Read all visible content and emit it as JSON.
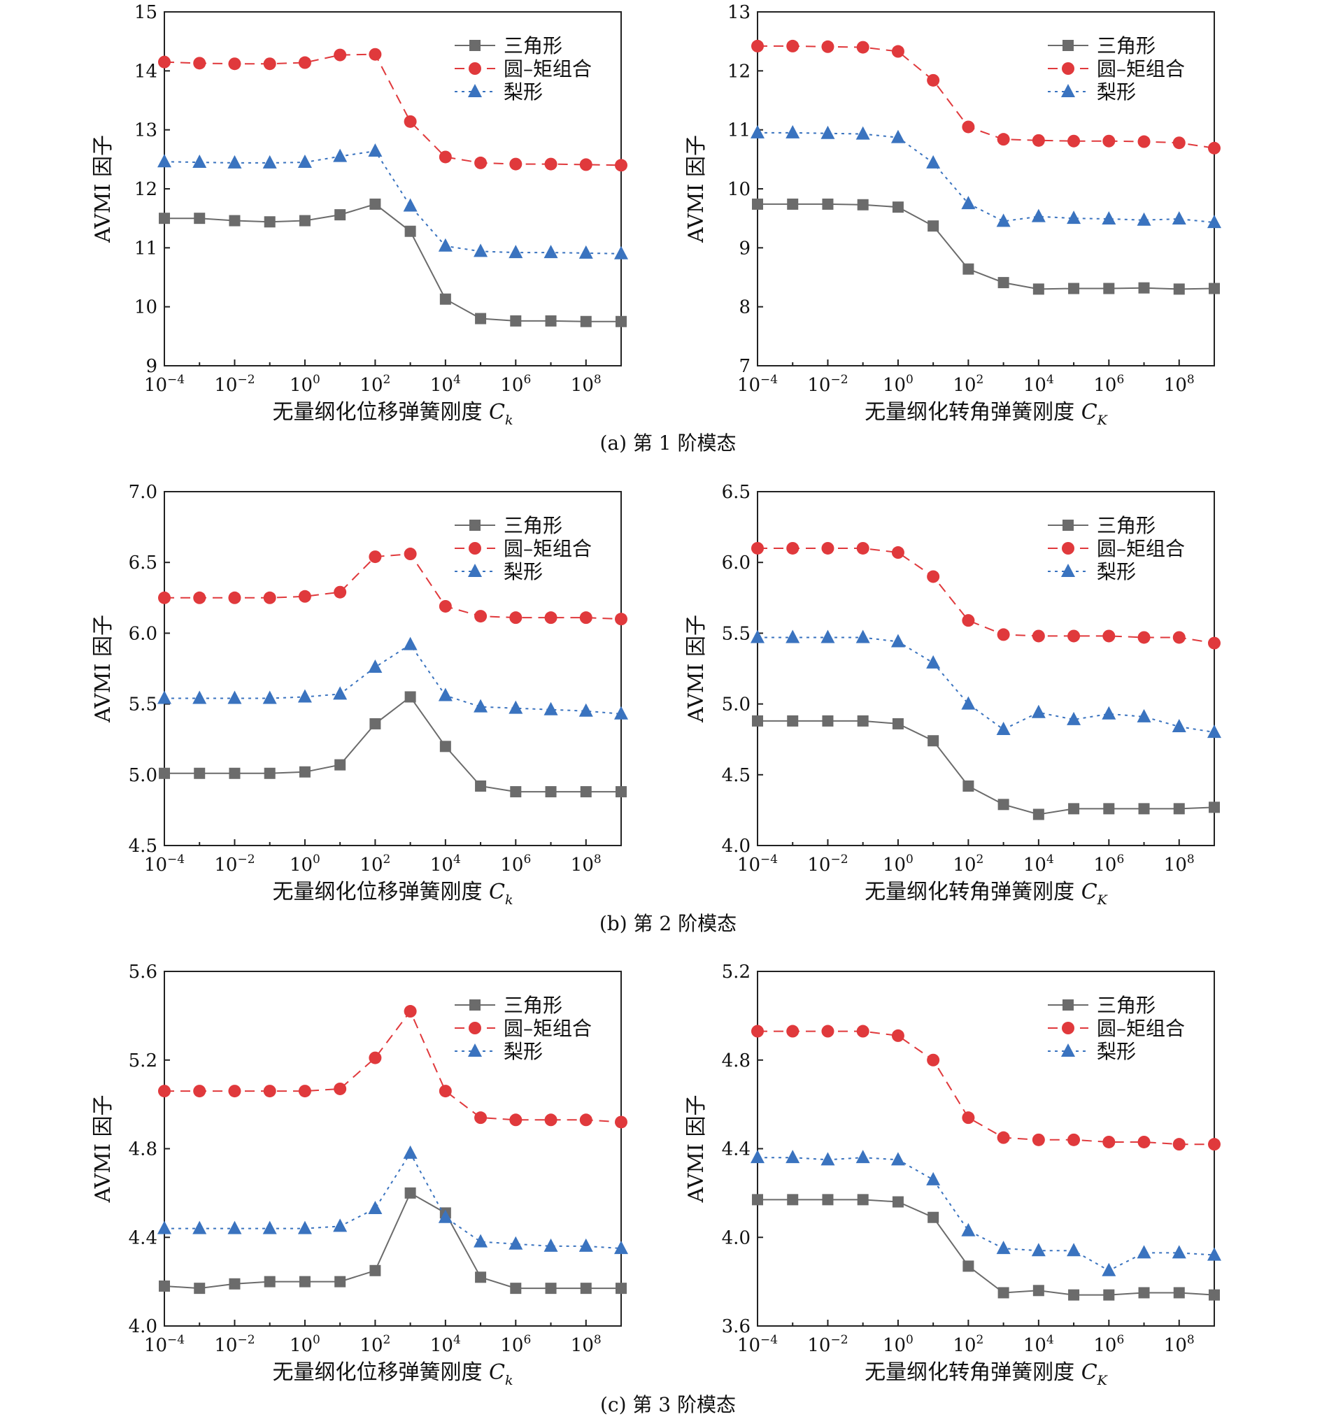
{
  "legend_labels": [
    "三角形",
    "圆–矩组合",
    "梨形"
  ],
  "series_colors": [
    "#6b6b6b",
    "#e0393c",
    "#3a73bf"
  ],
  "captions": [
    "(a) 第 1 阶模态",
    "(b) 第 2 阶模态",
    "(c) 第 3 阶模态"
  ],
  "chart_data": [
    {
      "type": "line",
      "panel": "(a) left",
      "x": [
        "1e-4",
        "1e-3",
        "1e-2",
        "1e-1",
        "1e0",
        "1e1",
        "1e2",
        "1e3",
        "1e4",
        "1e5",
        "1e6",
        "1e7",
        "1e8",
        "1e9"
      ],
      "xtick_labels": [
        "10^-4",
        "10^-2",
        "10^0",
        "10^2",
        "10^4",
        "10^6",
        "10^8"
      ],
      "xscale": "log",
      "xlim": [
        0.0001,
        1000000000.0
      ],
      "xlabel": "无量纲化位移弹簧刚度 C_k",
      "ylabel": "AVMI 因子",
      "ylim": [
        9,
        15
      ],
      "yticks": [
        "9",
        "10",
        "11",
        "12",
        "13",
        "14",
        "15"
      ],
      "series": [
        {
          "name": "三角形",
          "marker": "square",
          "line": "solid",
          "values": [
            11.5,
            11.5,
            11.46,
            11.44,
            11.46,
            11.56,
            11.74,
            11.28,
            10.13,
            9.8,
            9.76,
            9.76,
            9.75,
            9.75
          ]
        },
        {
          "name": "圆–矩组合",
          "marker": "circle",
          "line": "dashed",
          "values": [
            14.15,
            14.13,
            14.12,
            14.12,
            14.14,
            14.27,
            14.28,
            13.14,
            12.54,
            12.44,
            12.42,
            12.42,
            12.41,
            12.4
          ]
        },
        {
          "name": "梨形",
          "marker": "triangle",
          "line": "dotted",
          "values": [
            12.46,
            12.45,
            12.44,
            12.44,
            12.45,
            12.55,
            12.64,
            11.71,
            11.03,
            10.94,
            10.92,
            10.92,
            10.91,
            10.9
          ]
        }
      ]
    },
    {
      "type": "line",
      "panel": "(a) right",
      "x": [
        "1e-4",
        "1e-3",
        "1e-2",
        "1e-1",
        "1e0",
        "1e1",
        "1e2",
        "1e3",
        "1e4",
        "1e5",
        "1e6",
        "1e7",
        "1e8",
        "1e9"
      ],
      "xtick_labels": [
        "10^-4",
        "10^-2",
        "10^0",
        "10^2",
        "10^4",
        "10^6",
        "10^8"
      ],
      "xscale": "log",
      "xlim": [
        0.0001,
        1000000000.0
      ],
      "xlabel": "无量纲化转角弹簧刚度 C_K",
      "ylabel": "AVMI 因子",
      "ylim": [
        7,
        13
      ],
      "yticks": [
        "7",
        "8",
        "9",
        "10",
        "11",
        "12",
        "13"
      ],
      "series": [
        {
          "name": "三角形",
          "marker": "square",
          "line": "solid",
          "values": [
            9.74,
            9.74,
            9.74,
            9.73,
            9.69,
            9.37,
            8.64,
            8.41,
            8.3,
            8.31,
            8.31,
            8.32,
            8.3,
            8.31
          ]
        },
        {
          "name": "圆–矩组合",
          "marker": "circle",
          "line": "dashed",
          "values": [
            12.42,
            12.42,
            12.41,
            12.4,
            12.33,
            11.84,
            11.05,
            10.84,
            10.82,
            10.81,
            10.81,
            10.8,
            10.78,
            10.69
          ]
        },
        {
          "name": "梨形",
          "marker": "triangle",
          "line": "dotted",
          "values": [
            10.95,
            10.95,
            10.94,
            10.93,
            10.87,
            10.44,
            9.75,
            9.45,
            9.53,
            9.5,
            9.49,
            9.47,
            9.49,
            9.43
          ]
        }
      ]
    },
    {
      "type": "line",
      "panel": "(b) left",
      "x": [
        "1e-4",
        "1e-3",
        "1e-2",
        "1e-1",
        "1e0",
        "1e1",
        "1e2",
        "1e3",
        "1e4",
        "1e5",
        "1e6",
        "1e7",
        "1e8",
        "1e9"
      ],
      "xtick_labels": [
        "10^-4",
        "10^-2",
        "10^0",
        "10^2",
        "10^4",
        "10^6",
        "10^8"
      ],
      "xscale": "log",
      "xlim": [
        0.0001,
        1000000000.0
      ],
      "xlabel": "无量纲化位移弹簧刚度 C_k",
      "ylabel": "AVMI 因子",
      "ylim": [
        4.5,
        7.0
      ],
      "yticks": [
        "4.5",
        "5.0",
        "5.5",
        "6.0",
        "6.5",
        "7.0"
      ],
      "series": [
        {
          "name": "三角形",
          "marker": "square",
          "line": "solid",
          "values": [
            5.01,
            5.01,
            5.01,
            5.01,
            5.02,
            5.07,
            5.36,
            5.55,
            5.2,
            4.92,
            4.88,
            4.88,
            4.88,
            4.88
          ]
        },
        {
          "name": "圆–矩组合",
          "marker": "circle",
          "line": "dashed",
          "values": [
            6.25,
            6.25,
            6.25,
            6.25,
            6.26,
            6.29,
            6.54,
            6.56,
            6.19,
            6.12,
            6.11,
            6.11,
            6.11,
            6.1
          ]
        },
        {
          "name": "梨形",
          "marker": "triangle",
          "line": "dotted",
          "values": [
            5.54,
            5.54,
            5.54,
            5.54,
            5.55,
            5.57,
            5.76,
            5.92,
            5.56,
            5.48,
            5.47,
            5.46,
            5.45,
            5.43
          ]
        }
      ]
    },
    {
      "type": "line",
      "panel": "(b) right",
      "x": [
        "1e-4",
        "1e-3",
        "1e-2",
        "1e-1",
        "1e0",
        "1e1",
        "1e2",
        "1e3",
        "1e4",
        "1e5",
        "1e6",
        "1e7",
        "1e8",
        "1e9"
      ],
      "xtick_labels": [
        "10^-4",
        "10^-2",
        "10^0",
        "10^2",
        "10^4",
        "10^6",
        "10^8"
      ],
      "xscale": "log",
      "xlim": [
        0.0001,
        1000000000.0
      ],
      "xlabel": "无量纲化转角弹簧刚度 C_K",
      "ylabel": "AVMI 因子",
      "ylim": [
        4.0,
        6.5
      ],
      "yticks": [
        "4.0",
        "4.5",
        "5.0",
        "5.5",
        "6.0",
        "6.5"
      ],
      "series": [
        {
          "name": "三角形",
          "marker": "square",
          "line": "solid",
          "values": [
            4.88,
            4.88,
            4.88,
            4.88,
            4.86,
            4.74,
            4.42,
            4.29,
            4.22,
            4.26,
            4.26,
            4.26,
            4.26,
            4.27
          ]
        },
        {
          "name": "圆–矩组合",
          "marker": "circle",
          "line": "dashed",
          "values": [
            6.1,
            6.1,
            6.1,
            6.1,
            6.07,
            5.9,
            5.59,
            5.49,
            5.48,
            5.48,
            5.48,
            5.47,
            5.47,
            5.43
          ]
        },
        {
          "name": "梨形",
          "marker": "triangle",
          "line": "dotted",
          "values": [
            5.47,
            5.47,
            5.47,
            5.47,
            5.44,
            5.29,
            5.0,
            4.82,
            4.94,
            4.89,
            4.93,
            4.91,
            4.84,
            4.8
          ]
        }
      ]
    },
    {
      "type": "line",
      "panel": "(c) left",
      "x": [
        "1e-4",
        "1e-3",
        "1e-2",
        "1e-1",
        "1e0",
        "1e1",
        "1e2",
        "1e3",
        "1e4",
        "1e5",
        "1e6",
        "1e7",
        "1e8",
        "1e9"
      ],
      "xtick_labels": [
        "10^-4",
        "10^-2",
        "10^0",
        "10^2",
        "10^4",
        "10^6",
        "10^8"
      ],
      "xscale": "log",
      "xlim": [
        0.0001,
        1000000000.0
      ],
      "xlabel": "无量纲化位移弹簧刚度 C_k",
      "ylabel": "AVMI 因子",
      "ylim": [
        4.0,
        5.6
      ],
      "yticks": [
        "4.0",
        "4.4",
        "4.8",
        "5.2",
        "5.6"
      ],
      "series": [
        {
          "name": "三角形",
          "marker": "square",
          "line": "solid",
          "values": [
            4.18,
            4.17,
            4.19,
            4.2,
            4.2,
            4.2,
            4.25,
            4.6,
            4.51,
            4.22,
            4.17,
            4.17,
            4.17,
            4.17
          ]
        },
        {
          "name": "圆–矩组合",
          "marker": "circle",
          "line": "dashed",
          "values": [
            5.06,
            5.06,
            5.06,
            5.06,
            5.06,
            5.07,
            5.21,
            5.42,
            5.06,
            4.94,
            4.93,
            4.93,
            4.93,
            4.92
          ]
        },
        {
          "name": "梨形",
          "marker": "triangle",
          "line": "dotted",
          "values": [
            4.44,
            4.44,
            4.44,
            4.44,
            4.44,
            4.45,
            4.53,
            4.78,
            4.49,
            4.38,
            4.37,
            4.36,
            4.36,
            4.35
          ]
        }
      ]
    },
    {
      "type": "line",
      "panel": "(c) right",
      "x": [
        "1e-4",
        "1e-3",
        "1e-2",
        "1e-1",
        "1e0",
        "1e1",
        "1e2",
        "1e3",
        "1e4",
        "1e5",
        "1e6",
        "1e7",
        "1e8",
        "1e9"
      ],
      "xtick_labels": [
        "10^-4",
        "10^-2",
        "10^0",
        "10^2",
        "10^4",
        "10^6",
        "10^8"
      ],
      "xscale": "log",
      "xlim": [
        0.0001,
        1000000000.0
      ],
      "xlabel": "无量纲化转角弹簧刚度 C_K",
      "ylabel": "AVMI 因子",
      "ylim": [
        3.6,
        5.2
      ],
      "yticks": [
        "3.6",
        "4.0",
        "4.4",
        "4.8",
        "5.2"
      ],
      "series": [
        {
          "name": "三角形",
          "marker": "square",
          "line": "solid",
          "values": [
            4.17,
            4.17,
            4.17,
            4.17,
            4.16,
            4.09,
            3.87,
            3.75,
            3.76,
            3.74,
            3.74,
            3.75,
            3.75,
            3.74
          ]
        },
        {
          "name": "圆–矩组合",
          "marker": "circle",
          "line": "dashed",
          "values": [
            4.93,
            4.93,
            4.93,
            4.93,
            4.91,
            4.8,
            4.54,
            4.45,
            4.44,
            4.44,
            4.43,
            4.43,
            4.42,
            4.42
          ]
        },
        {
          "name": "梨形",
          "marker": "triangle",
          "line": "dotted",
          "values": [
            4.36,
            4.36,
            4.35,
            4.36,
            4.35,
            4.26,
            4.03,
            3.95,
            3.94,
            3.94,
            3.85,
            3.93,
            3.93,
            3.92
          ]
        }
      ]
    }
  ]
}
